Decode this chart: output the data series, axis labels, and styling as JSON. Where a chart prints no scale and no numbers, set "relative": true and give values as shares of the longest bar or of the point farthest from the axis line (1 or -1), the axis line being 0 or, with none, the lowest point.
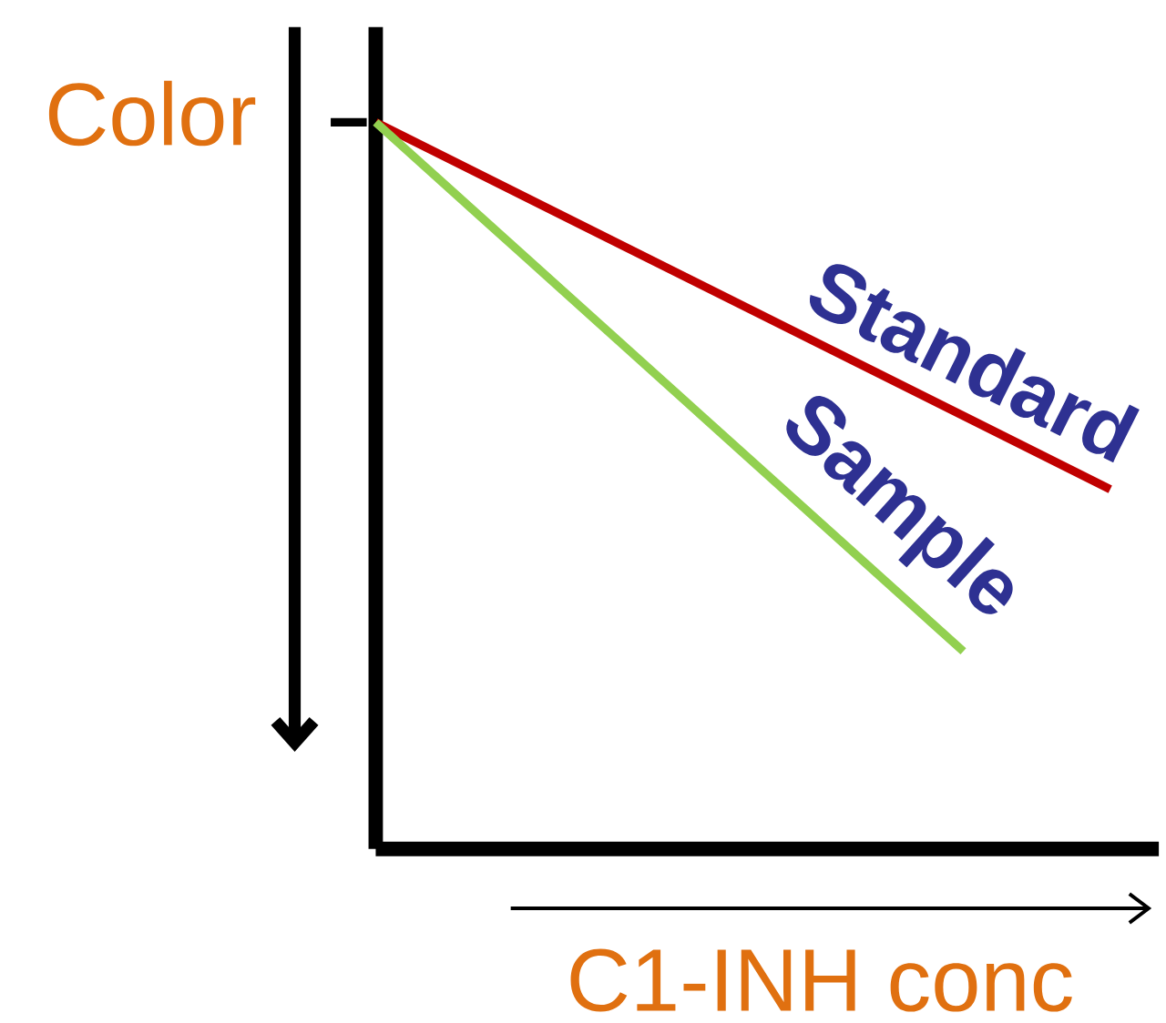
{
  "chart_data": {
    "type": "line",
    "relative": true,
    "xlabel": "C1-INH conc",
    "ylabel": "Color",
    "categories": [
      null,
      null,
      null,
      null,
      null,
      null
    ],
    "series": [
      {
        "name": "Standard",
        "color": "#c00000",
        "values": [
          1,
          0.899,
          0.798,
          0.697,
          0.596,
          0.495
        ]
      },
      {
        "name": "Sample",
        "color": "#92d050",
        "values": [
          1,
          0.818,
          0.636,
          0.454,
          0.272,
          null
        ]
      }
    ],
    "marker": "none",
    "line_style": "solid"
  }
}
